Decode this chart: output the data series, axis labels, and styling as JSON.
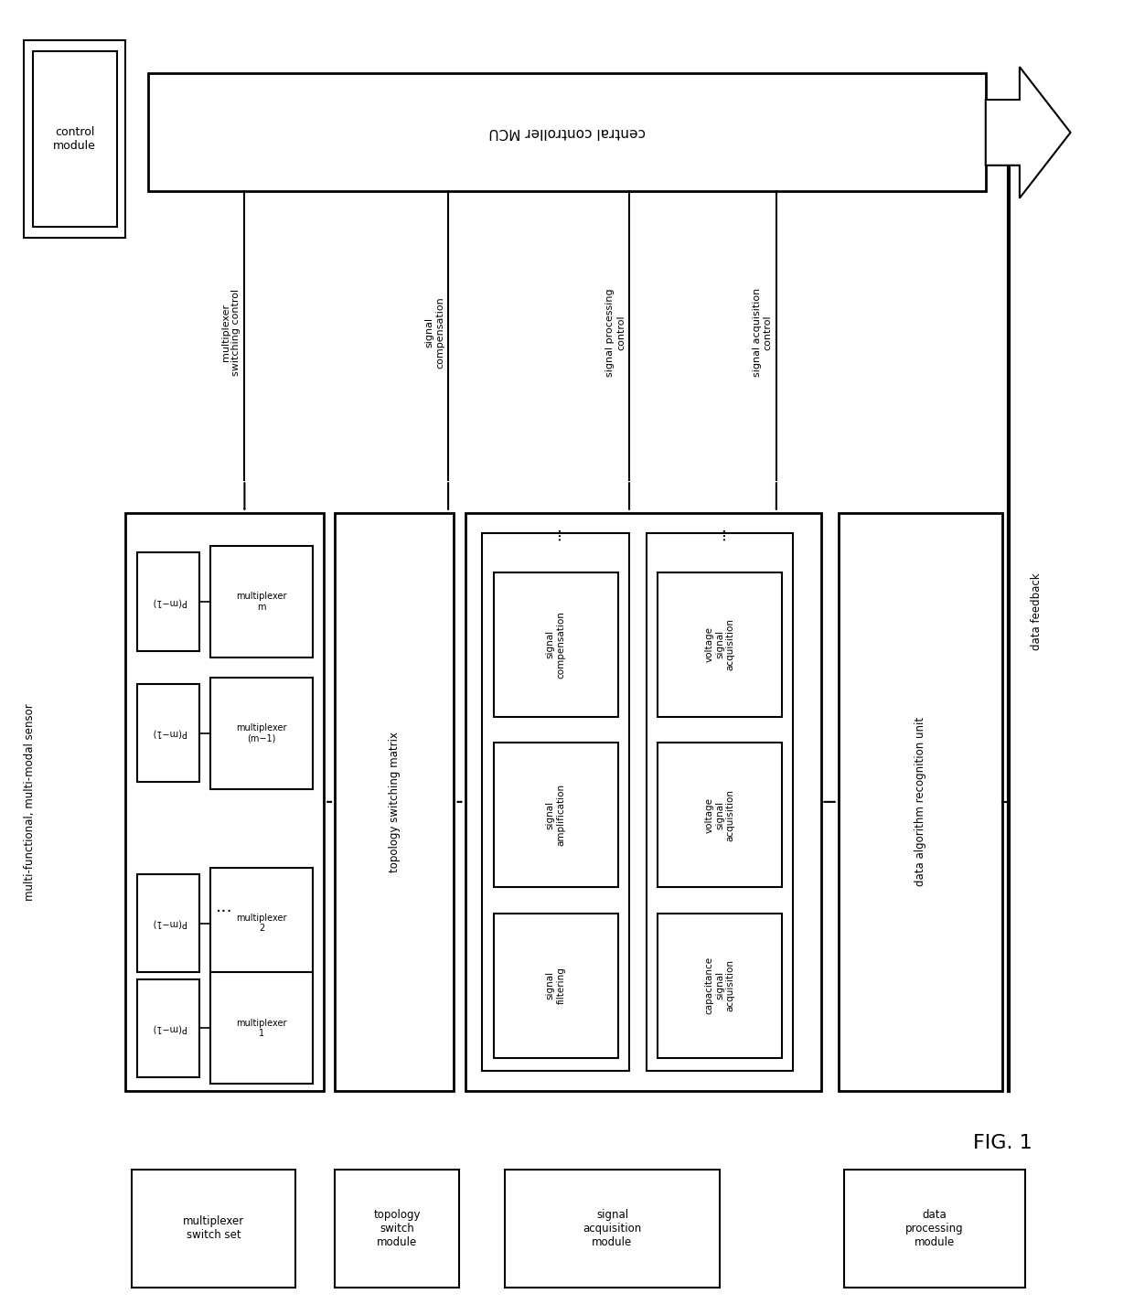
{
  "bg_color": "#ffffff",
  "line_color": "#000000",
  "fig_width": 12.4,
  "fig_height": 14.38,
  "dpi": 100,
  "fig1_label": "FIG. 1",
  "mcu_label": "central controller MCU",
  "ctrl_mod_label": "control\nmodule",
  "sensor_label": "multi-functional, multi-modal sensor",
  "topo_matrix_label": "topology switching matrix",
  "data_algo_label": "data algorithm recognition unit",
  "mux_set_label": "multiplexer\nswitch set",
  "topo_switch_label": "topology\nswitch\nmodule",
  "sig_acq_label": "signal\nacquisition\nmodule",
  "data_proc_label": "data\nprocessing\nmodule",
  "arrow_labels": [
    "multiplexer\nswitching control",
    "signal\ncompensation",
    "signal processing\ncontrol",
    "signal acquisition\ncontrol",
    "data feedback"
  ],
  "mux_labels": [
    "multiplexer\nm",
    "multiplexer\n(m-1)",
    "multiplexer\n2",
    "multiplexer\n1"
  ],
  "p_labels": [
    "P(m-1)",
    "P(m-1)",
    "P(m-1)",
    "P(m-1)"
  ],
  "sp_labels": [
    "signal\ncompensation",
    "signal\namplification",
    "signal\nfiltering"
  ],
  "acq_labels": [
    "voltage\nsignal\nacquisition",
    "voltage\nsignal\nacquisition",
    "capacitance\nsignal\nacquisition"
  ]
}
